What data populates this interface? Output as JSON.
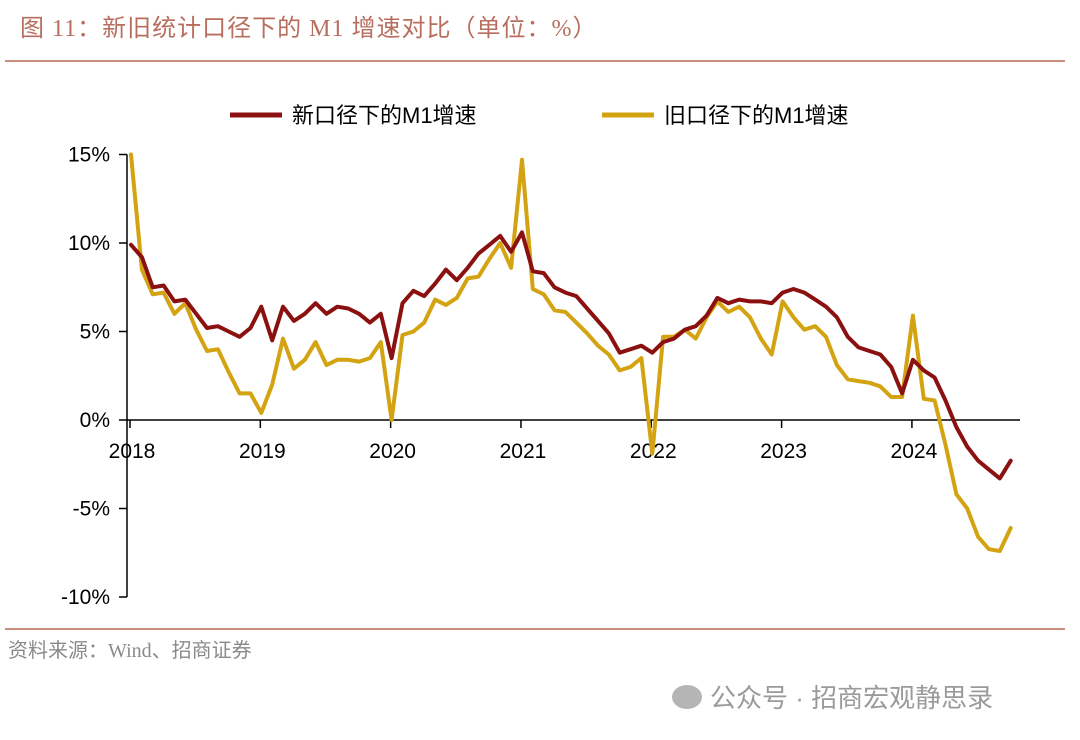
{
  "title": "图 11：新旧统计口径下的 M1 增速对比（单位：%）",
  "source": "资料来源：Wind、招商证券",
  "watermark": "公众号 · 招商宏观静思录",
  "chart_data": {
    "type": "line",
    "title": "",
    "xlabel": "",
    "ylabel": "",
    "x_start": "2018-01",
    "x_end": "2024-10",
    "frequency": "monthly",
    "x_tick_labels": [
      "2018",
      "2019",
      "2020",
      "2021",
      "2022",
      "2023",
      "2024"
    ],
    "y_tick_labels": [
      "15%",
      "10%",
      "5%",
      "0%",
      "-5%",
      "-10%"
    ],
    "y_ticks": [
      15,
      10,
      5,
      0,
      -5,
      -10
    ],
    "ylim": [
      -10,
      15
    ],
    "grid": false,
    "legend_position": "top",
    "series": [
      {
        "name": "新口径下的M1增速",
        "color": "#8B1010",
        "values": [
          9.9,
          9.2,
          7.5,
          7.6,
          6.7,
          6.8,
          6.0,
          5.2,
          5.3,
          5.0,
          4.7,
          5.2,
          6.4,
          4.5,
          6.4,
          5.6,
          6.0,
          6.6,
          6.0,
          6.4,
          6.3,
          6.0,
          5.5,
          6.0,
          3.5,
          6.6,
          7.3,
          7.0,
          7.7,
          8.5,
          7.9,
          8.6,
          9.4,
          9.9,
          10.4,
          9.5,
          10.6,
          8.4,
          8.3,
          7.5,
          7.2,
          7.0,
          6.3,
          5.6,
          4.9,
          3.8,
          4.0,
          4.2,
          3.8,
          4.4,
          4.6,
          5.1,
          5.3,
          5.9,
          6.9,
          6.6,
          6.8,
          6.7,
          6.7,
          6.6,
          7.2,
          7.4,
          7.2,
          6.8,
          6.4,
          5.8,
          4.7,
          4.1,
          3.9,
          3.7,
          3.0,
          1.5,
          3.4,
          2.8,
          2.4,
          1.1,
          -0.4,
          -1.5,
          -2.3,
          -2.8,
          -3.3,
          -2.3
        ]
      },
      {
        "name": "旧口径下的M1增速",
        "color": "#D4A311",
        "values": [
          15.0,
          8.5,
          7.1,
          7.2,
          6.0,
          6.6,
          5.1,
          3.9,
          4.0,
          2.7,
          1.5,
          1.5,
          0.4,
          2.0,
          4.6,
          2.9,
          3.4,
          4.4,
          3.1,
          3.4,
          3.4,
          3.3,
          3.5,
          4.4,
          0.0,
          4.8,
          5.0,
          5.5,
          6.8,
          6.5,
          6.9,
          8.0,
          8.1,
          9.1,
          10.0,
          8.6,
          14.7,
          7.4,
          7.1,
          6.2,
          6.1,
          5.5,
          4.9,
          4.2,
          3.7,
          2.8,
          3.0,
          3.5,
          -1.9,
          4.7,
          4.7,
          5.1,
          4.6,
          5.8,
          6.7,
          6.1,
          6.4,
          5.8,
          4.6,
          3.7,
          6.7,
          5.8,
          5.1,
          5.3,
          4.7,
          3.1,
          2.3,
          2.2,
          2.1,
          1.9,
          1.3,
          1.3,
          5.9,
          1.2,
          1.1,
          -1.4,
          -4.2,
          -5.0,
          -6.6,
          -7.3,
          -7.4,
          -6.1
        ]
      }
    ]
  }
}
